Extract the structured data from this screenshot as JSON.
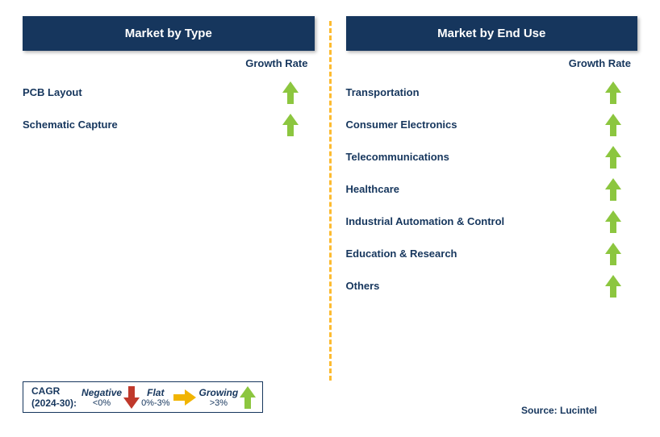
{
  "colors": {
    "header_bg": "#16365d",
    "header_text": "#ffffff",
    "divider": "#fdbb30",
    "label_text": "#16365d",
    "growth_text": "#16365d",
    "arrow_up": "#8cc63f",
    "arrow_down": "#c0392b",
    "arrow_flat": "#f1b400",
    "legend_border": "#16365d",
    "source_text": "#16365d"
  },
  "growth_label": "Growth Rate",
  "left": {
    "title": "Market by Type",
    "rows": [
      {
        "label": "PCB Layout",
        "growth": "up"
      },
      {
        "label": "Schematic Capture",
        "growth": "up"
      }
    ]
  },
  "right": {
    "title": "Market by End Use",
    "rows": [
      {
        "label": "Transportation",
        "growth": "up"
      },
      {
        "label": "Consumer Electronics",
        "growth": "up"
      },
      {
        "label": "Telecommunications",
        "growth": "up"
      },
      {
        "label": "Healthcare",
        "growth": "up"
      },
      {
        "label": "Industrial Automation & Control",
        "growth": "up"
      },
      {
        "label": "Education & Research",
        "growth": "up"
      },
      {
        "label": "Others",
        "growth": "up"
      }
    ]
  },
  "legend": {
    "title_line1": "CAGR",
    "title_line2": "(2024-30):",
    "segments": [
      {
        "word": "Negative",
        "range": "<0%",
        "arrow": "down"
      },
      {
        "word": "Flat",
        "range": "0%-3%",
        "arrow": "right"
      },
      {
        "word": "Growing",
        "range": ">3%",
        "arrow": "up"
      }
    ]
  },
  "source": "Source: Lucintel"
}
